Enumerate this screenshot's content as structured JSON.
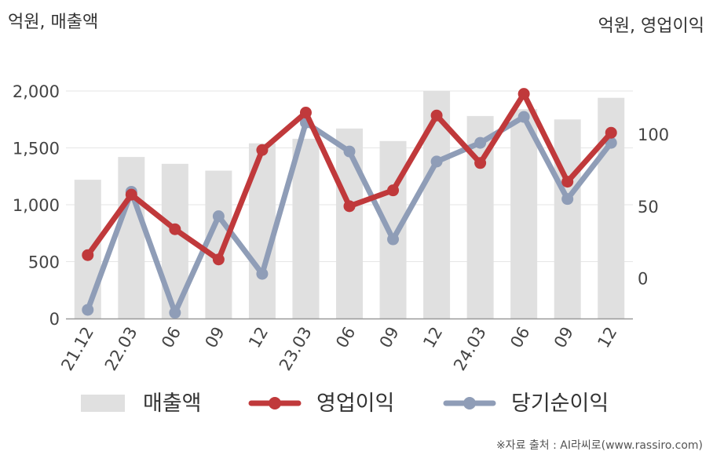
{
  "units": {
    "left": "억원, 매출액",
    "right": "억원, 영업이익"
  },
  "source": "※자료 출처 : AI라씨로(www.rassiro.com)",
  "colors": {
    "revenue": "#e0e0e0",
    "operating_profit": "#c0393b",
    "net_income": "#8f9db7",
    "axis": "#999999",
    "grid": "#e6e6e6"
  },
  "chart_data": {
    "type": "bar+line",
    "categories": [
      "21.12",
      "22.03",
      "06",
      "09",
      "12",
      "23.03",
      "06",
      "09",
      "12",
      "24.03",
      "06",
      "09",
      "12"
    ],
    "left_axis": {
      "ylim": [
        0,
        2000
      ],
      "ticks": [
        "0",
        "500",
        "1,000",
        "1,500",
        "2,000"
      ],
      "tick_values": [
        0,
        500,
        1000,
        1500,
        2000
      ]
    },
    "right_axis": {
      "ylim": [
        -28,
        130
      ],
      "ticks": [
        "0",
        "50",
        "100"
      ],
      "tick_values": [
        0,
        50,
        100
      ]
    },
    "grid": true,
    "legend_position": "bottom",
    "series": [
      {
        "name": "매출액",
        "type": "bar",
        "axis": "left",
        "color": "#e0e0e0",
        "values": [
          1220,
          1420,
          1360,
          1300,
          1540,
          1580,
          1670,
          1560,
          2000,
          1780,
          1840,
          1750,
          1940
        ]
      },
      {
        "name": "영업이익",
        "type": "line",
        "axis": "right",
        "color": "#c0393b",
        "values": [
          16,
          58,
          34,
          13,
          89,
          115,
          50,
          61,
          113,
          80,
          128,
          67,
          101
        ]
      },
      {
        "name": "당기순이익",
        "type": "line",
        "axis": "right",
        "color": "#8f9db7",
        "values": [
          -22,
          60,
          -24,
          43,
          3,
          108,
          88,
          27,
          81,
          94,
          112,
          55,
          94
        ]
      }
    ]
  }
}
